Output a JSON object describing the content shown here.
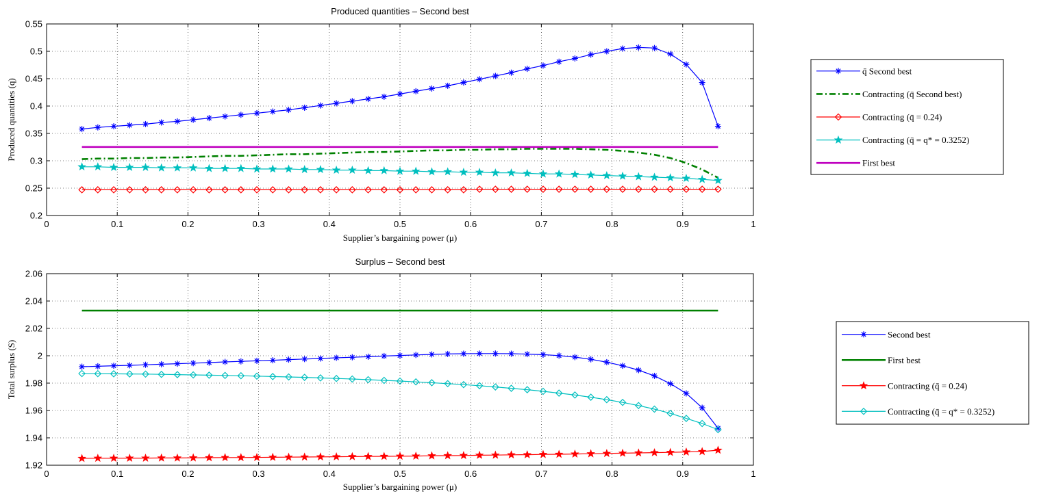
{
  "chart_data": [
    {
      "type": "line",
      "title": "Produced quantities – Second best",
      "xlabel": "Supplier’s bargaining power (μ)",
      "ylabel": "Produced quantities (q)",
      "xlim": [
        0,
        1
      ],
      "ylim": [
        0.2,
        0.55
      ],
      "xticks": [
        "0",
        "0.1",
        "0.2",
        "0.3",
        "0.4",
        "0.5",
        "0.6",
        "0.7",
        "0.8",
        "0.9",
        "1"
      ],
      "yticks": [
        "0.2",
        "0.25",
        "0.3",
        "0.35",
        "0.4",
        "0.45",
        "0.5",
        "0.55"
      ],
      "grid": true,
      "legend_position": "outside-right",
      "x": [
        0.05,
        0.0725,
        0.095,
        0.1175,
        0.14,
        0.1625,
        0.185,
        0.2075,
        0.23,
        0.2525,
        0.275,
        0.2975,
        0.32,
        0.3425,
        0.365,
        0.3875,
        0.41,
        0.4325,
        0.455,
        0.4775,
        0.5,
        0.5225,
        0.545,
        0.5675,
        0.59,
        0.6125,
        0.635,
        0.6575,
        0.68,
        0.7025,
        0.725,
        0.7475,
        0.77,
        0.7925,
        0.815,
        0.8375,
        0.86,
        0.8825,
        0.905,
        0.9275,
        0.95
      ],
      "series": [
        {
          "name": "q̄ Second best",
          "color": "#0000ff",
          "marker": "asterisk",
          "line": "solid",
          "values": [
            0.358,
            0.361,
            0.363,
            0.365,
            0.367,
            0.37,
            0.372,
            0.375,
            0.378,
            0.381,
            0.384,
            0.387,
            0.39,
            0.393,
            0.397,
            0.401,
            0.405,
            0.409,
            0.413,
            0.417,
            0.422,
            0.427,
            0.432,
            0.437,
            0.443,
            0.449,
            0.455,
            0.461,
            0.468,
            0.474,
            0.481,
            0.487,
            0.494,
            0.5,
            0.505,
            0.507,
            0.506,
            0.495,
            0.476,
            0.443,
            0.363
          ]
        },
        {
          "name": "Contracting (q̄ Second best)",
          "color": "#008000",
          "marker": "none",
          "line": "dashdot",
          "values": [
            0.303,
            0.304,
            0.304,
            0.305,
            0.305,
            0.306,
            0.306,
            0.307,
            0.308,
            0.309,
            0.309,
            0.31,
            0.311,
            0.312,
            0.312,
            0.313,
            0.314,
            0.315,
            0.316,
            0.316,
            0.317,
            0.318,
            0.319,
            0.319,
            0.32,
            0.32,
            0.321,
            0.321,
            0.322,
            0.322,
            0.322,
            0.322,
            0.321,
            0.32,
            0.318,
            0.315,
            0.311,
            0.305,
            0.296,
            0.284,
            0.269
          ]
        },
        {
          "name": "Contracting (q̄ = 0.24)",
          "color": "#ff0000",
          "marker": "diamond",
          "line": "solid",
          "values": [
            0.247,
            0.247,
            0.247,
            0.247,
            0.247,
            0.247,
            0.247,
            0.247,
            0.247,
            0.247,
            0.247,
            0.247,
            0.247,
            0.247,
            0.247,
            0.247,
            0.247,
            0.247,
            0.247,
            0.247,
            0.247,
            0.247,
            0.247,
            0.247,
            0.247,
            0.248,
            0.248,
            0.248,
            0.248,
            0.248,
            0.248,
            0.248,
            0.248,
            0.248,
            0.248,
            0.248,
            0.248,
            0.248,
            0.248,
            0.248,
            0.248
          ]
        },
        {
          "name": "Contracting (q̄ = q* = 0.3252)",
          "color": "#00bfbf",
          "marker": "star",
          "line": "solid",
          "values": [
            0.289,
            0.289,
            0.288,
            0.288,
            0.288,
            0.287,
            0.287,
            0.287,
            0.286,
            0.286,
            0.286,
            0.285,
            0.285,
            0.285,
            0.284,
            0.284,
            0.283,
            0.283,
            0.282,
            0.282,
            0.281,
            0.281,
            0.28,
            0.28,
            0.279,
            0.279,
            0.278,
            0.278,
            0.277,
            0.276,
            0.276,
            0.275,
            0.274,
            0.273,
            0.272,
            0.271,
            0.27,
            0.269,
            0.268,
            0.266,
            0.264
          ]
        },
        {
          "name": "First best",
          "color": "#bf00bf",
          "marker": "none",
          "line": "solid-thick",
          "values": [
            0.3252,
            0.3252,
            0.3252,
            0.3252,
            0.3252,
            0.3252,
            0.3252,
            0.3252,
            0.3252,
            0.3252,
            0.3252,
            0.3252,
            0.3252,
            0.3252,
            0.3252,
            0.3252,
            0.3252,
            0.3252,
            0.3252,
            0.3252,
            0.3252,
            0.3252,
            0.3252,
            0.3252,
            0.3252,
            0.3252,
            0.3252,
            0.3252,
            0.3252,
            0.3252,
            0.3252,
            0.3252,
            0.3252,
            0.3252,
            0.3252,
            0.3252,
            0.3252,
            0.3252,
            0.3252,
            0.3252,
            0.3252
          ]
        }
      ]
    },
    {
      "type": "line",
      "title": "Surplus – Second best",
      "xlabel": "Supplier’s bargaining power (μ)",
      "ylabel": "Total surplus (S)",
      "xlim": [
        0,
        1
      ],
      "ylim": [
        1.92,
        2.06
      ],
      "xticks": [
        "0",
        "0.1",
        "0.2",
        "0.3",
        "0.4",
        "0.5",
        "0.6",
        "0.7",
        "0.8",
        "0.9",
        "1"
      ],
      "yticks": [
        "1.92",
        "1.94",
        "1.96",
        "1.98",
        "2",
        "2.02",
        "2.04",
        "2.06"
      ],
      "grid": true,
      "legend_position": "outside-right",
      "x": [
        0.05,
        0.0725,
        0.095,
        0.1175,
        0.14,
        0.1625,
        0.185,
        0.2075,
        0.23,
        0.2525,
        0.275,
        0.2975,
        0.32,
        0.3425,
        0.365,
        0.3875,
        0.41,
        0.4325,
        0.455,
        0.4775,
        0.5,
        0.5225,
        0.545,
        0.5675,
        0.59,
        0.6125,
        0.635,
        0.6575,
        0.68,
        0.7025,
        0.725,
        0.7475,
        0.77,
        0.7925,
        0.815,
        0.8375,
        0.86,
        0.8825,
        0.905,
        0.9275,
        0.95
      ],
      "series": [
        {
          "name": "Second best",
          "color": "#0000ff",
          "marker": "asterisk",
          "line": "solid",
          "values": [
            1.992,
            1.9923,
            1.9927,
            1.993,
            1.9934,
            1.9938,
            1.9942,
            1.9946,
            1.995,
            1.9955,
            1.9959,
            1.9963,
            1.9967,
            1.9972,
            1.9976,
            1.998,
            1.9985,
            1.9989,
            1.9993,
            1.9998,
            2.0002,
            2.0006,
            2.001,
            2.0013,
            2.0015,
            2.0016,
            2.0016,
            2.0015,
            2.0012,
            2.0008,
            2.0001,
            1.999,
            1.9974,
            1.9953,
            1.9927,
            1.9895,
            1.9853,
            1.9796,
            1.9725,
            1.962,
            1.947
          ]
        },
        {
          "name": "First best",
          "color": "#008000",
          "marker": "none",
          "line": "solid-thick",
          "values": [
            2.033,
            2.033,
            2.033,
            2.033,
            2.033,
            2.033,
            2.033,
            2.033,
            2.033,
            2.033,
            2.033,
            2.033,
            2.033,
            2.033,
            2.033,
            2.033,
            2.033,
            2.033,
            2.033,
            2.033,
            2.033,
            2.033,
            2.033,
            2.033,
            2.033,
            2.033,
            2.033,
            2.033,
            2.033,
            2.033,
            2.033,
            2.033,
            2.033,
            2.033,
            2.033,
            2.033,
            2.033,
            2.033,
            2.033,
            2.033,
            2.033
          ]
        },
        {
          "name": "Contracting (q̄ = 0.24)",
          "color": "#ff0000",
          "marker": "star",
          "line": "solid",
          "values": [
            1.925,
            1.9251,
            1.9251,
            1.9252,
            1.9252,
            1.9253,
            1.9253,
            1.9254,
            1.9255,
            1.9256,
            1.9256,
            1.9257,
            1.9258,
            1.9259,
            1.926,
            1.9261,
            1.9262,
            1.9263,
            1.9264,
            1.9265,
            1.9266,
            1.9267,
            1.9269,
            1.927,
            1.9271,
            1.9273,
            1.9274,
            1.9276,
            1.9277,
            1.9279,
            1.928,
            1.9282,
            1.9284,
            1.9286,
            1.9288,
            1.929,
            1.9292,
            1.9294,
            1.9297,
            1.93,
            1.931
          ]
        },
        {
          "name": "Contracting (q̄ = q* = 0.3252)",
          "color": "#00bfbf",
          "marker": "diamond",
          "line": "solid",
          "values": [
            1.987,
            1.9869,
            1.9868,
            1.9867,
            1.9866,
            1.9864,
            1.9862,
            1.986,
            1.9858,
            1.9856,
            1.9854,
            1.9851,
            1.9848,
            1.9845,
            1.9842,
            1.9838,
            1.9834,
            1.983,
            1.9825,
            1.982,
            1.9815,
            1.9809,
            1.9803,
            1.9796,
            1.9789,
            1.9781,
            1.9772,
            1.9762,
            1.9752,
            1.974,
            1.9727,
            1.9713,
            1.9697,
            1.9679,
            1.9659,
            1.9636,
            1.961,
            1.9579,
            1.9542,
            1.9505,
            1.946
          ]
        }
      ]
    }
  ]
}
